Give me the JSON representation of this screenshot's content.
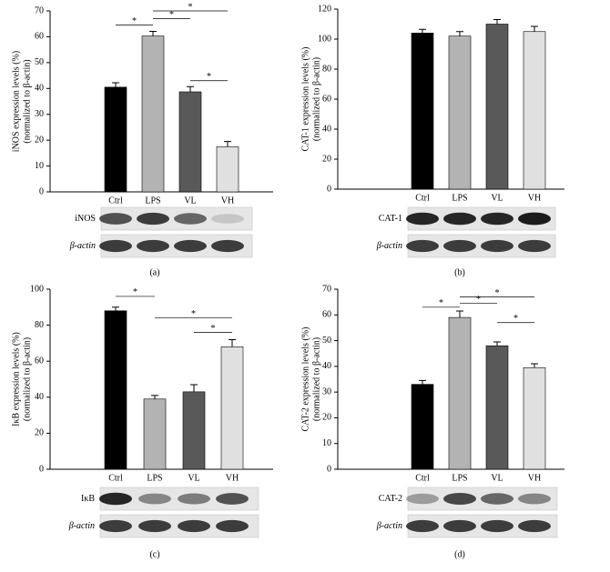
{
  "chart_data": [
    {
      "type": "bar",
      "panel_label": "(a)",
      "ylabel_lines": [
        "iNOS expression levels (%)",
        "(normalized to β-actin)"
      ],
      "categories": [
        "Ctrl",
        "LPS",
        "VL",
        "VH"
      ],
      "values": [
        40.5,
        60.3,
        38.7,
        17.5
      ],
      "errors": [
        1.7,
        1.8,
        2,
        2
      ],
      "colors": [
        "#000000",
        "#b3b3b3",
        "#595959",
        "#e0e0e0"
      ],
      "ylim": [
        0,
        70
      ],
      "yticks": [
        0,
        10,
        20,
        30,
        40,
        50,
        60,
        70
      ],
      "significance": [
        {
          "label": "*",
          "pair": [
            0,
            1
          ]
        },
        {
          "label": "*",
          "pair": [
            1,
            2
          ]
        },
        {
          "label": "*",
          "pair": [
            1,
            3
          ]
        },
        {
          "label": "*",
          "pair": [
            2,
            3
          ]
        }
      ],
      "blot_labels": [
        "iNOS",
        "β-actin"
      ]
    },
    {
      "type": "bar",
      "panel_label": "(b)",
      "ylabel_lines": [
        "CAT-1 expression levels (%)",
        "(normalized to β-actin)"
      ],
      "categories": [
        "Ctrl",
        "LPS",
        "VL",
        "VH"
      ],
      "values": [
        104,
        102,
        110,
        105
      ],
      "errors": [
        2.5,
        3,
        3,
        3.5
      ],
      "colors": [
        "#000000",
        "#b3b3b3",
        "#595959",
        "#e0e0e0"
      ],
      "ylim": [
        0,
        120
      ],
      "yticks": [
        0,
        20,
        40,
        60,
        80,
        100,
        120
      ],
      "significance": [],
      "blot_labels": [
        "CAT-1",
        "β-actin"
      ]
    },
    {
      "type": "bar",
      "panel_label": "(c)",
      "ylabel_lines": [
        "IκB expression levels (%)",
        "(normalized to β-actin)"
      ],
      "categories": [
        "Ctrl",
        "LPS",
        "VL",
        "VH"
      ],
      "values": [
        88,
        39,
        43,
        68
      ],
      "errors": [
        2,
        2,
        4,
        4
      ],
      "colors": [
        "#000000",
        "#b3b3b3",
        "#595959",
        "#e0e0e0"
      ],
      "ylim": [
        0,
        100
      ],
      "yticks": [
        0,
        20,
        40,
        60,
        80,
        100
      ],
      "significance": [
        {
          "label": "*",
          "pair": [
            0,
            1
          ]
        },
        {
          "label": "*",
          "pair": [
            1,
            3
          ]
        },
        {
          "label": "*",
          "pair": [
            2,
            3
          ]
        }
      ],
      "blot_labels": [
        "IκB",
        "β-actin"
      ]
    },
    {
      "type": "bar",
      "panel_label": "(d)",
      "ylabel_lines": [
        "CAT-2 expression levels (%)",
        "(normalized to β-actin)"
      ],
      "categories": [
        "Ctrl",
        "LPS",
        "VL",
        "VH"
      ],
      "values": [
        33,
        59,
        48,
        39.5
      ],
      "errors": [
        1.5,
        2.5,
        1.5,
        1.5
      ],
      "colors": [
        "#000000",
        "#b3b3b3",
        "#595959",
        "#e0e0e0"
      ],
      "ylim": [
        0,
        70
      ],
      "yticks": [
        0,
        10,
        20,
        30,
        40,
        50,
        60,
        70
      ],
      "significance": [
        {
          "label": "*",
          "pair": [
            0,
            1
          ]
        },
        {
          "label": "*",
          "pair": [
            1,
            2
          ]
        },
        {
          "label": "*",
          "pair": [
            1,
            3
          ]
        },
        {
          "label": "*",
          "pair": [
            2,
            3
          ]
        }
      ],
      "blot_labels": [
        "CAT-2",
        "β-actin"
      ]
    }
  ]
}
